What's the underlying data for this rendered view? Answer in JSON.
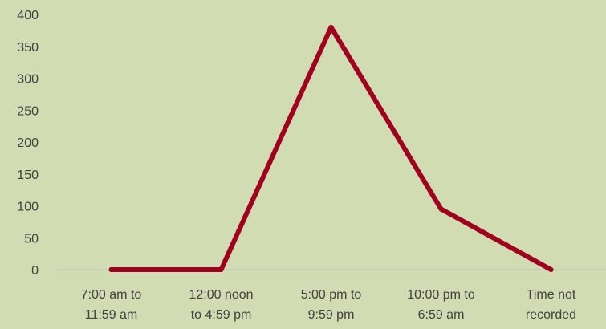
{
  "colors": {
    "background": "#d1dcb2",
    "line": "#a0001f",
    "axis": "#bfbfbf",
    "text": "#404040"
  },
  "chart_data": {
    "type": "line",
    "title": "",
    "xlabel": "",
    "ylabel": "",
    "grid": false,
    "legend": "none",
    "ylim": [
      0,
      400
    ],
    "yticks": [
      0,
      50,
      100,
      150,
      200,
      250,
      300,
      350,
      400
    ],
    "categories": [
      [
        "7:00 am to",
        "11:59 am"
      ],
      [
        "12:00 noon",
        "to 4:59 pm"
      ],
      [
        "5:00 pm to",
        "9:59 pm"
      ],
      [
        "10:00 pm to",
        "6:59 am"
      ],
      [
        "Time not",
        "recorded"
      ]
    ],
    "series": [
      {
        "values": [
          0,
          0,
          380,
          95,
          0
        ]
      }
    ]
  }
}
